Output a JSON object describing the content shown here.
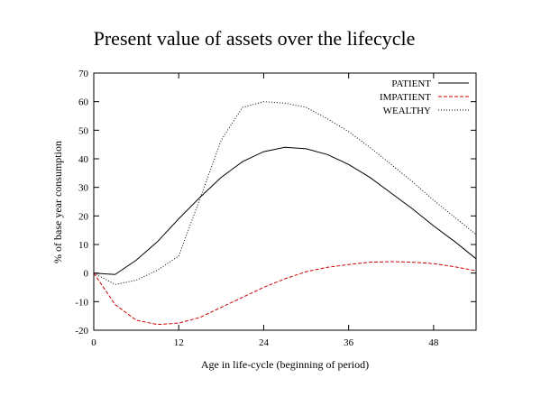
{
  "chart_data": {
    "type": "line",
    "title": "Present value of assets over the lifecycle",
    "xlabel": "Age in life-cycle (beginning of period)",
    "ylabel": "% of base year consumption",
    "xlim": [
      0,
      54
    ],
    "ylim": [
      -20,
      70
    ],
    "xticks": [
      0,
      12,
      24,
      36,
      48
    ],
    "yticks": [
      -20,
      -10,
      0,
      10,
      20,
      30,
      40,
      50,
      60,
      70
    ],
    "grid": false,
    "legend_position": "top-right",
    "series": [
      {
        "name": "PATIENT",
        "color": "#000000",
        "dash": "solid",
        "x": [
          0,
          3,
          6,
          9,
          12,
          15,
          18,
          21,
          24,
          27,
          30,
          33,
          36,
          39,
          42,
          45,
          48,
          51,
          54
        ],
        "y": [
          0,
          -0.5,
          4.5,
          11,
          19,
          26.5,
          33.5,
          39,
          42.5,
          44,
          43.5,
          41.5,
          38,
          33.5,
          28,
          22.5,
          16.5,
          11,
          5
        ]
      },
      {
        "name": "IMPATIENT",
        "color": "#cc0000",
        "dash": "dashed",
        "x": [
          0,
          3,
          6,
          9,
          12,
          15,
          18,
          21,
          24,
          27,
          30,
          33,
          36,
          39,
          42,
          45,
          48,
          51,
          54
        ],
        "y": [
          0,
          -11,
          -16.5,
          -18,
          -17.5,
          -15.5,
          -12,
          -8.5,
          -5,
          -2,
          0.5,
          2,
          3,
          3.8,
          4,
          3.8,
          3.3,
          2.2,
          0.8
        ]
      },
      {
        "name": "WEALTHY",
        "color": "#000000",
        "dash": "dotted",
        "x": [
          0,
          3,
          6,
          9,
          12,
          15,
          18,
          21,
          24,
          27,
          30,
          33,
          36,
          39,
          42,
          45,
          48,
          51,
          54
        ],
        "y": [
          0,
          -4,
          -2.5,
          1,
          6,
          26,
          46.5,
          58,
          60,
          59.5,
          58,
          54,
          49.5,
          44,
          38,
          32,
          25.5,
          19.5,
          13.5
        ]
      }
    ]
  }
}
